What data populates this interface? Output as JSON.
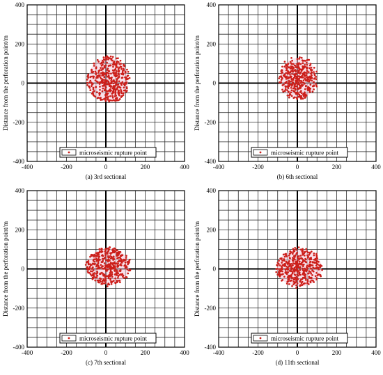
{
  "chart_data": [
    {
      "type": "scatter",
      "caption": "(a)  3rd sectional",
      "ylabel": "Distance from the perforation point/m",
      "xlabel": "",
      "xlim": [
        -400,
        400
      ],
      "ylim": [
        -400,
        400
      ],
      "xticks": [
        -400,
        -200,
        0,
        200,
        400
      ],
      "yticks": [
        -400,
        -200,
        0,
        200,
        400
      ],
      "grid": true,
      "legend_position": "bottom-left",
      "series": [
        {
          "name": "microseismic rupture point",
          "color": "#cc1f1a",
          "cloud": {
            "center": [
              10,
              20
            ],
            "x_extent": [
              -95,
              120
            ],
            "y_extent": [
              -100,
              135
            ],
            "count": 420
          }
        }
      ]
    },
    {
      "type": "scatter",
      "caption": "(b)  6th sectional",
      "ylabel": "Distance from the perforation point/m",
      "xlabel": "",
      "xlim": [
        -400,
        400
      ],
      "ylim": [
        -400,
        400
      ],
      "xticks": [
        -400,
        -200,
        0,
        200,
        400
      ],
      "yticks": [
        -400,
        -200,
        0,
        200,
        400
      ],
      "grid": true,
      "legend_position": "bottom-left",
      "series": [
        {
          "name": "microseismic rupture point",
          "color": "#cc1f1a",
          "cloud": {
            "center": [
              5,
              15
            ],
            "x_extent": [
              -90,
              100
            ],
            "y_extent": [
              -85,
              135
            ],
            "count": 380
          }
        }
      ]
    },
    {
      "type": "scatter",
      "caption": "(c)   7th sectional",
      "ylabel": "Distance from the perforation point/m",
      "xlabel": "",
      "xlim": [
        -400,
        400
      ],
      "ylim": [
        -400,
        400
      ],
      "xticks": [
        -400,
        -200,
        0,
        200,
        400
      ],
      "yticks": [
        -400,
        -200,
        0,
        200,
        400
      ],
      "grid": true,
      "legend_position": "bottom-left",
      "series": [
        {
          "name": "microseismic rupture point",
          "color": "#cc1f1a",
          "cloud": {
            "center": [
              5,
              5
            ],
            "x_extent": [
              -100,
              125
            ],
            "y_extent": [
              -85,
              110
            ],
            "count": 400
          }
        }
      ]
    },
    {
      "type": "scatter",
      "caption": "(d)  11th sectional",
      "ylabel": "Distance from the perforation point/m",
      "xlabel": "",
      "xlim": [
        -400,
        400
      ],
      "ylim": [
        -400,
        400
      ],
      "xticks": [
        -400,
        -200,
        0,
        200,
        400
      ],
      "yticks": [
        -400,
        -200,
        0,
        200,
        400
      ],
      "grid": true,
      "legend_position": "bottom-left",
      "series": [
        {
          "name": "microseismic rupture point",
          "color": "#cc1f1a",
          "cloud": {
            "center": [
              0,
              0
            ],
            "x_extent": [
              -110,
              130
            ],
            "y_extent": [
              -95,
              105
            ],
            "count": 400
          }
        }
      ]
    }
  ]
}
